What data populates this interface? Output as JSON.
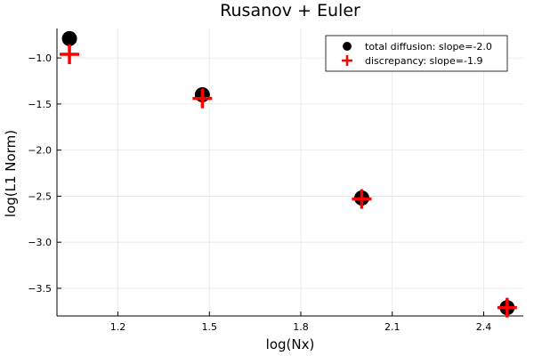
{
  "chart_data": {
    "type": "scatter",
    "title": "Rusanov + Euler",
    "xlabel": "log(Nx)",
    "ylabel": "log(L1 Norm)",
    "xlim": [
      1.0,
      2.53
    ],
    "ylim": [
      -3.8,
      -0.68
    ],
    "xticks": [
      1.2,
      1.5,
      1.8,
      2.1,
      2.4
    ],
    "xtick_labels": [
      "1.2",
      "1.5",
      "1.8",
      "2.1",
      "2.4"
    ],
    "yticks": [
      -1.0,
      -1.5,
      -2.0,
      -2.5,
      -3.0,
      -3.5
    ],
    "ytick_labels": [
      "−1.0",
      "−1.5",
      "−2.0",
      "−2.5",
      "−3.0",
      "−3.5"
    ],
    "grid": true,
    "legend_position": "top-right",
    "series": [
      {
        "name": "total diffusion: slope=-2.0",
        "marker": "circle",
        "color": "#000000",
        "x": [
          1.041,
          1.477,
          2.0,
          2.477
        ],
        "y": [
          -0.79,
          -1.4,
          -2.52,
          -3.71
        ]
      },
      {
        "name": "discrepancy: slope=-1.9",
        "marker": "cross",
        "color": "#ff0000",
        "x": [
          1.041,
          1.477,
          2.0,
          2.477
        ],
        "y": [
          -0.96,
          -1.44,
          -2.53,
          -3.71
        ]
      }
    ]
  }
}
